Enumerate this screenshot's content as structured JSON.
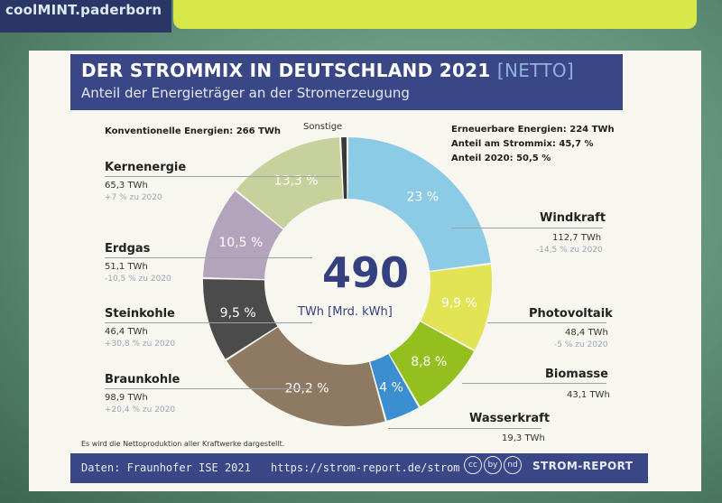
{
  "top": {
    "brand": "coolMINT.paderborn"
  },
  "header": {
    "title": "DER STROMMIX IN DEUTSCHLAND 2021",
    "title_tag": "[NETTO]",
    "subtitle": "Anteil der Energieträger an der Stromerzeugung"
  },
  "summary": {
    "conventional": "Konventionelle Energien: 266 TWh",
    "renewable": "Erneuerbare Energien: 224 TWh",
    "share": "Anteil am Strommix: 45,7 %",
    "share2020": "Anteil 2020: 50,5 %",
    "other_label": "Sonstige"
  },
  "center": {
    "value": "490",
    "unit": "TWh [Mrd. kWh]"
  },
  "sources": [
    {
      "name": "Kernenergie",
      "value": "65,3 TWh",
      "change": "+7 % zu 2020"
    },
    {
      "name": "Erdgas",
      "value": "51,1 TWh",
      "change": "-10,5 % zu 2020"
    },
    {
      "name": "Steinkohle",
      "value": "46,4 TWh",
      "change": "+30,8 % zu 2020"
    },
    {
      "name": "Braunkohle",
      "value": "98,9 TWh",
      "change": "+20,4 % zu 2020"
    },
    {
      "name": "Windkraft",
      "value": "112,7 TWh",
      "change": "-14,5 % zu 2020"
    },
    {
      "name": "Photovoltaik",
      "value": "48,4 TWh",
      "change": "-5 % zu 2020"
    },
    {
      "name": "Biomasse",
      "value": "43,1 TWh",
      "change": ""
    },
    {
      "name": "Wasserkraft",
      "value": "19,3 TWh",
      "change": ""
    }
  ],
  "chart_data": {
    "type": "pie",
    "title": "DER STROMMIX IN DEUTSCHLAND 2021 [NETTO]",
    "subtitle": "Anteil der Energieträger an der Stromerzeugung",
    "unit": "TWh",
    "categories": [
      "Windkraft",
      "Photovoltaik",
      "Biomasse",
      "Wasserkraft",
      "Braunkohle",
      "Steinkohle",
      "Erdgas",
      "Kernenergie",
      "Sonstige"
    ],
    "values": [
      23,
      9.9,
      8.8,
      4,
      20.2,
      9.5,
      10.5,
      13.3,
      0.8
    ],
    "labels": [
      "23 %",
      "9,9 %",
      "8,8 %",
      "4 %",
      "20,2 %",
      "9,5 %",
      "10,5 %",
      "13,3 %",
      ""
    ],
    "colors": [
      "#8ccbe6",
      "#e2e355",
      "#93c01f",
      "#3b8fd0",
      "#8e7a62",
      "#4b4b4b",
      "#b3a3bd",
      "#c6d19c",
      "#3a3a3a"
    ],
    "total": 490
  },
  "footer": {
    "note": "Es wird die Nettoproduktion aller Kraftwerke dargestellt.",
    "source": "Daten: Fraunhofer ISE 2021",
    "url": "https://strom-report.de/strom",
    "cc_icons": [
      "cc",
      "by",
      "nd"
    ],
    "brand": "STROM-REPORT"
  }
}
